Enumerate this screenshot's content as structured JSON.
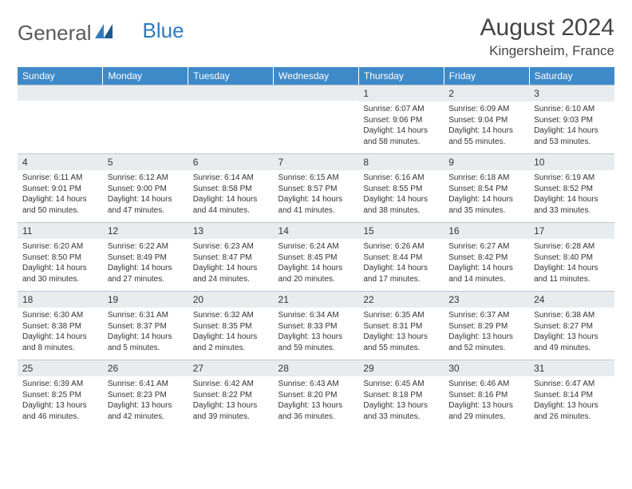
{
  "brand": {
    "part1": "General",
    "part2": "Blue"
  },
  "title": "August 2024",
  "location": "Kingersheim, France",
  "colors": {
    "header_bg": "#3e8ac9",
    "header_text": "#ffffff",
    "daynum_bg": "#e9ecef",
    "border": "#bfc6cc",
    "logo_gray": "#5a5a5a",
    "logo_blue": "#2f7bbf"
  },
  "weekdays": [
    "Sunday",
    "Monday",
    "Tuesday",
    "Wednesday",
    "Thursday",
    "Friday",
    "Saturday"
  ],
  "weeks": [
    [
      null,
      null,
      null,
      null,
      {
        "d": "1",
        "sr": "6:07 AM",
        "ss": "9:06 PM",
        "dl": "14 hours and 58 minutes."
      },
      {
        "d": "2",
        "sr": "6:09 AM",
        "ss": "9:04 PM",
        "dl": "14 hours and 55 minutes."
      },
      {
        "d": "3",
        "sr": "6:10 AM",
        "ss": "9:03 PM",
        "dl": "14 hours and 53 minutes."
      }
    ],
    [
      {
        "d": "4",
        "sr": "6:11 AM",
        "ss": "9:01 PM",
        "dl": "14 hours and 50 minutes."
      },
      {
        "d": "5",
        "sr": "6:12 AM",
        "ss": "9:00 PM",
        "dl": "14 hours and 47 minutes."
      },
      {
        "d": "6",
        "sr": "6:14 AM",
        "ss": "8:58 PM",
        "dl": "14 hours and 44 minutes."
      },
      {
        "d": "7",
        "sr": "6:15 AM",
        "ss": "8:57 PM",
        "dl": "14 hours and 41 minutes."
      },
      {
        "d": "8",
        "sr": "6:16 AM",
        "ss": "8:55 PM",
        "dl": "14 hours and 38 minutes."
      },
      {
        "d": "9",
        "sr": "6:18 AM",
        "ss": "8:54 PM",
        "dl": "14 hours and 35 minutes."
      },
      {
        "d": "10",
        "sr": "6:19 AM",
        "ss": "8:52 PM",
        "dl": "14 hours and 33 minutes."
      }
    ],
    [
      {
        "d": "11",
        "sr": "6:20 AM",
        "ss": "8:50 PM",
        "dl": "14 hours and 30 minutes."
      },
      {
        "d": "12",
        "sr": "6:22 AM",
        "ss": "8:49 PM",
        "dl": "14 hours and 27 minutes."
      },
      {
        "d": "13",
        "sr": "6:23 AM",
        "ss": "8:47 PM",
        "dl": "14 hours and 24 minutes."
      },
      {
        "d": "14",
        "sr": "6:24 AM",
        "ss": "8:45 PM",
        "dl": "14 hours and 20 minutes."
      },
      {
        "d": "15",
        "sr": "6:26 AM",
        "ss": "8:44 PM",
        "dl": "14 hours and 17 minutes."
      },
      {
        "d": "16",
        "sr": "6:27 AM",
        "ss": "8:42 PM",
        "dl": "14 hours and 14 minutes."
      },
      {
        "d": "17",
        "sr": "6:28 AM",
        "ss": "8:40 PM",
        "dl": "14 hours and 11 minutes."
      }
    ],
    [
      {
        "d": "18",
        "sr": "6:30 AM",
        "ss": "8:38 PM",
        "dl": "14 hours and 8 minutes."
      },
      {
        "d": "19",
        "sr": "6:31 AM",
        "ss": "8:37 PM",
        "dl": "14 hours and 5 minutes."
      },
      {
        "d": "20",
        "sr": "6:32 AM",
        "ss": "8:35 PM",
        "dl": "14 hours and 2 minutes."
      },
      {
        "d": "21",
        "sr": "6:34 AM",
        "ss": "8:33 PM",
        "dl": "13 hours and 59 minutes."
      },
      {
        "d": "22",
        "sr": "6:35 AM",
        "ss": "8:31 PM",
        "dl": "13 hours and 55 minutes."
      },
      {
        "d": "23",
        "sr": "6:37 AM",
        "ss": "8:29 PM",
        "dl": "13 hours and 52 minutes."
      },
      {
        "d": "24",
        "sr": "6:38 AM",
        "ss": "8:27 PM",
        "dl": "13 hours and 49 minutes."
      }
    ],
    [
      {
        "d": "25",
        "sr": "6:39 AM",
        "ss": "8:25 PM",
        "dl": "13 hours and 46 minutes."
      },
      {
        "d": "26",
        "sr": "6:41 AM",
        "ss": "8:23 PM",
        "dl": "13 hours and 42 minutes."
      },
      {
        "d": "27",
        "sr": "6:42 AM",
        "ss": "8:22 PM",
        "dl": "13 hours and 39 minutes."
      },
      {
        "d": "28",
        "sr": "6:43 AM",
        "ss": "8:20 PM",
        "dl": "13 hours and 36 minutes."
      },
      {
        "d": "29",
        "sr": "6:45 AM",
        "ss": "8:18 PM",
        "dl": "13 hours and 33 minutes."
      },
      {
        "d": "30",
        "sr": "6:46 AM",
        "ss": "8:16 PM",
        "dl": "13 hours and 29 minutes."
      },
      {
        "d": "31",
        "sr": "6:47 AM",
        "ss": "8:14 PM",
        "dl": "13 hours and 26 minutes."
      }
    ]
  ],
  "labels": {
    "sunrise": "Sunrise: ",
    "sunset": "Sunset: ",
    "daylight": "Daylight: "
  }
}
